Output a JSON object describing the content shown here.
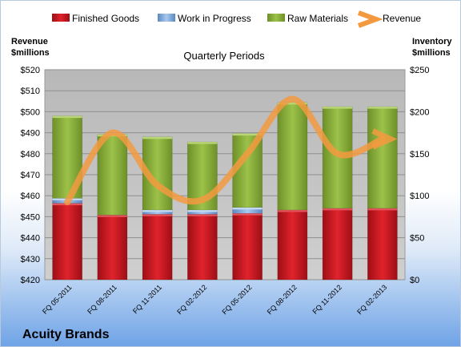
{
  "company": "Acuity Brands",
  "chart_data": {
    "type": "bar",
    "stacked": true,
    "subtitle": "Quarterly Periods",
    "categories": [
      "FQ 05-2011",
      "FQ 08-2011",
      "FQ 11-2011",
      "FQ 02-2012",
      "FQ 05-2012",
      "FQ 08-2012",
      "FQ 11-2012",
      "FQ 02-2013"
    ],
    "series": [
      {
        "name": "Finished Goods",
        "axis": "right",
        "color": "#c8141e",
        "values": [
          91,
          77,
          78,
          78,
          79,
          83,
          85,
          85
        ]
      },
      {
        "name": "Work in Progress",
        "axis": "right",
        "color": "#7aa6dc",
        "values": [
          6,
          0,
          5,
          5,
          7,
          0,
          0,
          0
        ]
      },
      {
        "name": "Raw Materials",
        "axis": "right",
        "color": "#8db23c",
        "values": [
          98,
          96,
          87,
          81,
          88,
          128,
          121,
          121
        ]
      },
      {
        "name": "Revenue",
        "axis": "left",
        "type": "line",
        "color": "#f39a40",
        "values": [
          457,
          490,
          465,
          458,
          480,
          506,
          480,
          487
        ]
      }
    ],
    "left_axis": {
      "label_line1": "Revenue",
      "label_line2": "$millions",
      "min": 420,
      "max": 520,
      "step": 10,
      "prefix": "$"
    },
    "right_axis": {
      "label_line1": "Inventory",
      "label_line2": "$millions",
      "min": 0,
      "max": 250,
      "step": 50,
      "prefix": "$"
    },
    "left_ticks": [
      "$420",
      "$430",
      "$440",
      "$450",
      "$460",
      "$470",
      "$480",
      "$490",
      "$500",
      "$510",
      "$520"
    ],
    "right_ticks": [
      "$0",
      "$50",
      "$100",
      "$150",
      "$200",
      "$250"
    ],
    "legend_position": "top",
    "grid": true,
    "plot_background": "#bdbdbd"
  }
}
